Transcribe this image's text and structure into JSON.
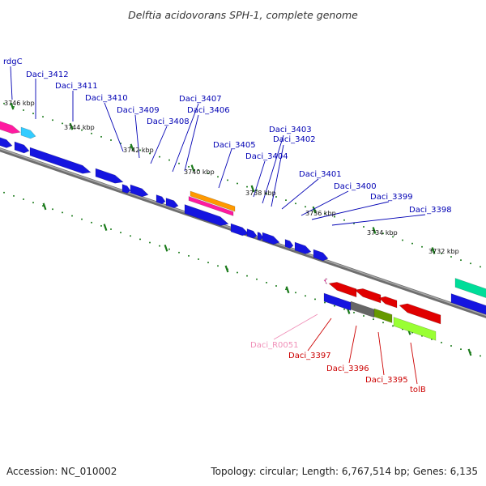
{
  "title": "Delftia acidovorans SPH-1, complete genome",
  "footer": {
    "accession": "Accession: NC_010002",
    "summary": "Topology: circular; Length: 6,767,514 bp; Genes: 6,135"
  },
  "colors": {
    "backbone": "#777777",
    "tick": "#1a7a1a",
    "label_blue": "#0000b4",
    "label_red": "#cc0000",
    "label_pink": "#f090b8",
    "gene_blue": "#1515e0",
    "gene_red": "#e00000",
    "gene_pink": "#ff1aa0",
    "gene_cyan": "#33ccff",
    "gene_orange": "#ff9900",
    "gene_gray": "#666666",
    "gene_olive": "#669900",
    "gene_lime": "#99ff33",
    "gene_teal": "#00dd99"
  },
  "tick_labels": [
    "3746 kbp",
    "3744 kbp",
    "3742 kbp",
    "3740 kbp",
    "3738 kbp",
    "3736 kbp",
    "3734 kbp",
    "3732 kbp"
  ],
  "labels_above": [
    "rdgC",
    "Daci_3412",
    "Daci_3411",
    "Daci_3410",
    "Daci_3409",
    "Daci_3408",
    "Daci_3407",
    "Daci_3406",
    "Daci_3405",
    "Daci_3404",
    "Daci_3403",
    "Daci_3402",
    "Daci_3401",
    "Daci_3400",
    "Daci_3399",
    "Daci_3398"
  ],
  "labels_below": [
    "Daci_R0051",
    "Daci_3397",
    "Daci_3396",
    "Daci_3395",
    "tolB"
  ]
}
